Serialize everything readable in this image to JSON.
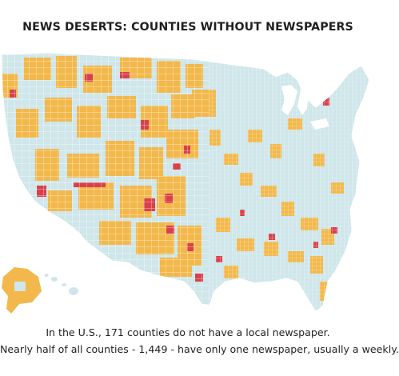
{
  "title": "NEWS DESERTS: COUNTIES WITHOUT NEWSPAPERS",
  "caption": {
    "line1": "In the U.S., 171 counties do not have a local newspaper.",
    "line2": "Nearly half of all counties - 1,449 - have only one newspaper, usually a weekly."
  },
  "map_data": {
    "type": "choropleth",
    "region": "United States counties",
    "categories": [
      {
        "key": "none",
        "color": "#d9404b"
      },
      {
        "key": "one",
        "color": "#f2b84b"
      },
      {
        "key": "two_plus",
        "color": "#cfe6ea"
      }
    ],
    "counties_without_newspaper": 171,
    "counties_with_one_newspaper": 1449
  }
}
